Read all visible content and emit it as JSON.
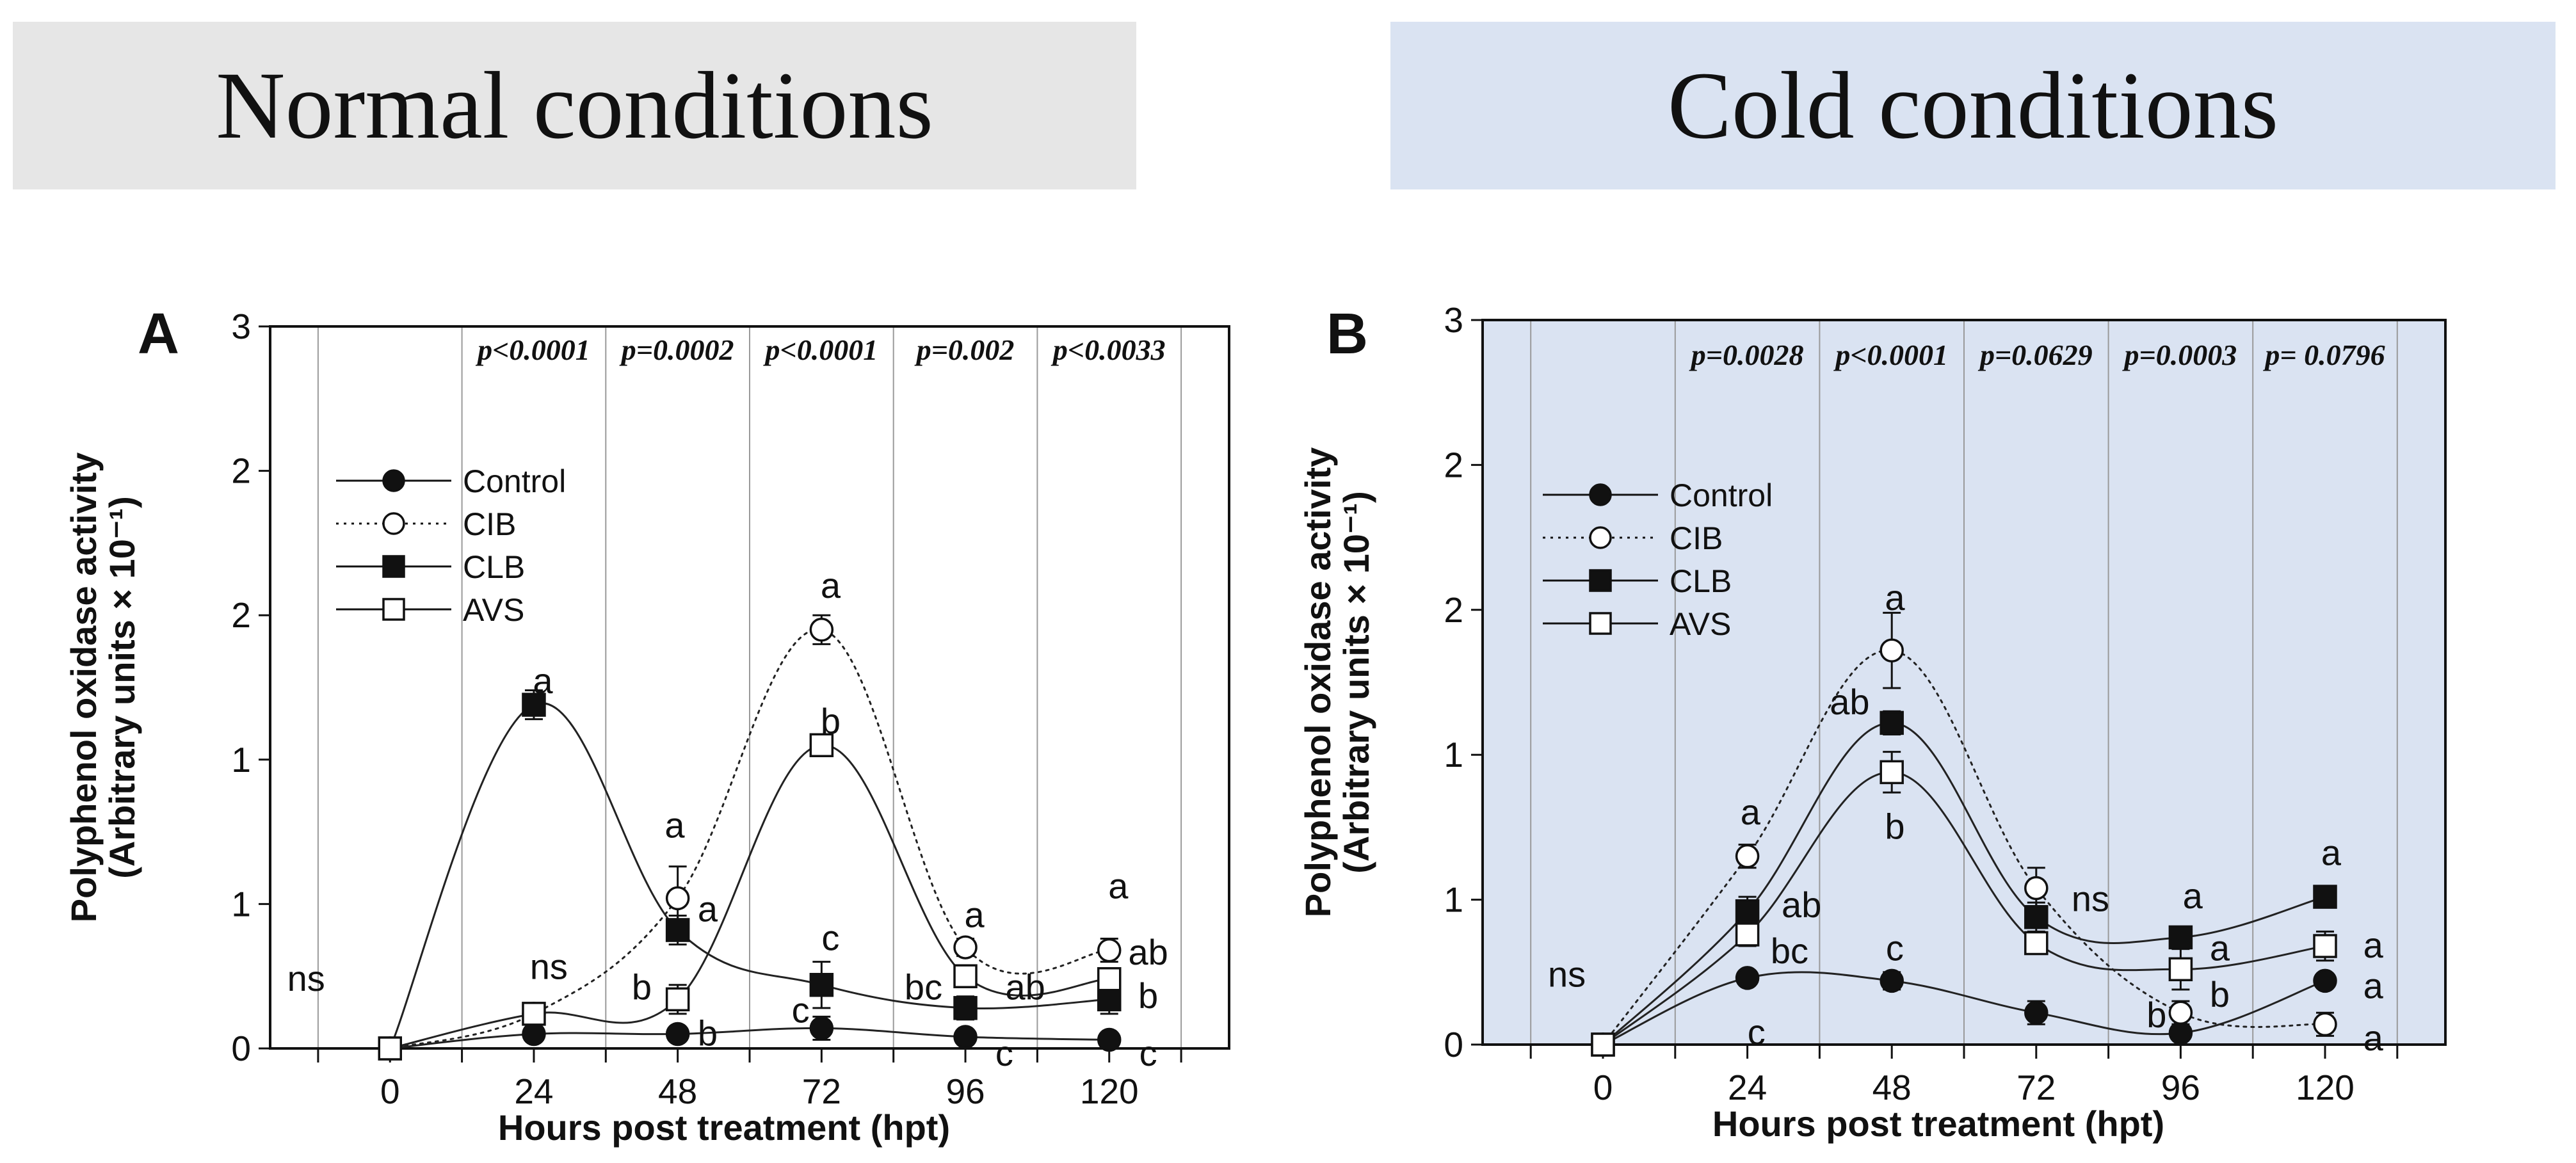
{
  "banners": {
    "normal": "Normal conditions",
    "cold": "Cold conditions"
  },
  "colors": {
    "plot_bg_normal": "#ffffff",
    "plot_bg_cold": "#dae3f2",
    "line": "#222222",
    "marker_fill": "#111111"
  },
  "chart_data": [
    {
      "panel_label": "A",
      "type": "line",
      "x": [
        0,
        24,
        48,
        72,
        96,
        120
      ],
      "xlabel": "Hours post treatment (hpt)",
      "ylabel_line1": "Polyphenol oxidase activity",
      "ylabel_line2": "(Arbitrary units × 10⁻¹)",
      "ylim": [
        0,
        2.5
      ],
      "xlim": [
        -20,
        140
      ],
      "ytick_values": [
        0,
        0.5,
        1,
        1.5,
        2,
        2.5
      ],
      "ytick_labels": [
        "0",
        "1",
        "1",
        "2",
        "2",
        "3"
      ],
      "xtick_labels": [
        "0",
        "24",
        "48",
        "72",
        "96",
        "120"
      ],
      "pvalues": [
        {
          "x": 24,
          "text": "p<0.0001"
        },
        {
          "x": 48,
          "text": "p=0.0002"
        },
        {
          "x": 72,
          "text": "p<0.0001"
        },
        {
          "x": 96,
          "text": "p=0.002"
        },
        {
          "x": 120,
          "text": "p<0.0033"
        }
      ],
      "legend": [
        "Control",
        "CIB",
        "CLB",
        "AVS"
      ],
      "series": [
        {
          "name": "Control",
          "marker": "filled-circle",
          "dash": "solid",
          "values": [
            0.0,
            0.05,
            0.05,
            0.07,
            0.04,
            0.03
          ],
          "err": [
            0,
            0.02,
            0.02,
            0.04,
            0.02,
            0.01
          ]
        },
        {
          "name": "CIB",
          "marker": "open-circle",
          "dash": "dotted",
          "values": [
            0.0,
            0.12,
            0.52,
            1.45,
            0.35,
            0.34
          ],
          "err": [
            0,
            0.02,
            0.11,
            0.05,
            0.03,
            0.04
          ]
        },
        {
          "name": "CLB",
          "marker": "filled-square",
          "dash": "solid",
          "values": [
            0.0,
            1.19,
            0.41,
            0.22,
            0.14,
            0.17
          ],
          "err": [
            0,
            0.05,
            0.05,
            0.08,
            0.04,
            0.05
          ]
        },
        {
          "name": "AVS",
          "marker": "open-square",
          "dash": "solid",
          "values": [
            0.0,
            0.12,
            0.17,
            1.05,
            0.25,
            0.24
          ],
          "err": [
            0,
            0.03,
            0.05,
            0.02,
            0.03,
            0.03
          ]
        }
      ],
      "annotations": [
        {
          "text": "ns",
          "x": -14,
          "y": 0.2
        },
        {
          "text": "ns",
          "x": 26.5,
          "y": 0.24
        },
        {
          "text": "a",
          "x": 25.5,
          "y": 1.23
        },
        {
          "text": "a",
          "x": 47.5,
          "y": 0.73
        },
        {
          "text": "a",
          "x": 53,
          "y": 0.44
        },
        {
          "text": "b",
          "x": 42,
          "y": 0.17
        },
        {
          "text": "b",
          "x": 53,
          "y": 0.01
        },
        {
          "text": "a",
          "x": 73.5,
          "y": 1.56
        },
        {
          "text": "b",
          "x": 73.5,
          "y": 1.09
        },
        {
          "text": "c",
          "x": 73.5,
          "y": 0.34
        },
        {
          "text": "c",
          "x": 68.5,
          "y": 0.09
        },
        {
          "text": "a",
          "x": 97.5,
          "y": 0.42
        },
        {
          "text": "bc",
          "x": 89,
          "y": 0.17
        },
        {
          "text": "ab",
          "x": 106,
          "y": 0.17
        },
        {
          "text": "c",
          "x": 102.5,
          "y": -0.06
        },
        {
          "text": "a",
          "x": 121.5,
          "y": 0.52
        },
        {
          "text": "ab",
          "x": 126.5,
          "y": 0.29
        },
        {
          "text": "b",
          "x": 126.5,
          "y": 0.14
        },
        {
          "text": "c",
          "x": 126.5,
          "y": -0.06
        }
      ]
    },
    {
      "panel_label": "B",
      "type": "line",
      "x": [
        0,
        24,
        48,
        72,
        96,
        120
      ],
      "xlabel": "Hours post treatment (hpt)",
      "ylabel_line1": "Polyphenol oxidase activity",
      "ylabel_line2": "(Arbitrary units × 10⁻¹)",
      "ylim": [
        0,
        2.5
      ],
      "xlim": [
        -20,
        140
      ],
      "ytick_values": [
        0,
        0.5,
        1,
        1.5,
        2,
        2.5
      ],
      "ytick_labels": [
        "0",
        "1",
        "1",
        "2",
        "2",
        "3"
      ],
      "xtick_labels": [
        "0",
        "24",
        "48",
        "72",
        "96",
        "120"
      ],
      "pvalues": [
        {
          "x": 24,
          "text": "p=0.0028"
        },
        {
          "x": 48,
          "text": "p<0.0001"
        },
        {
          "x": 72,
          "text": "p=0.0629"
        },
        {
          "x": 96,
          "text": "p=0.0003"
        },
        {
          "x": 120,
          "text": "p= 0.0796"
        }
      ],
      "legend": [
        "Control",
        "CIB",
        "CLB",
        "AVS"
      ],
      "series": [
        {
          "name": "Control",
          "marker": "filled-circle",
          "dash": "solid",
          "values": [
            0.0,
            0.23,
            0.22,
            0.11,
            0.04,
            0.22
          ],
          "err": [
            0,
            0.02,
            0.03,
            0.04,
            0.02,
            0.02
          ]
        },
        {
          "name": "CIB",
          "marker": "open-circle",
          "dash": "dotted",
          "values": [
            0.0,
            0.65,
            1.36,
            0.54,
            0.11,
            0.07
          ],
          "err": [
            0,
            0.04,
            0.13,
            0.07,
            0.04,
            0.04
          ]
        },
        {
          "name": "CLB",
          "marker": "filled-square",
          "dash": "solid",
          "values": [
            0.0,
            0.46,
            1.11,
            0.44,
            0.37,
            0.51
          ],
          "err": [
            0,
            0.05,
            0.04,
            0.05,
            0.03,
            0.03
          ]
        },
        {
          "name": "AVS",
          "marker": "open-square",
          "dash": "solid",
          "values": [
            0.0,
            0.38,
            0.94,
            0.35,
            0.26,
            0.34
          ],
          "err": [
            0,
            0.04,
            0.07,
            0.03,
            0.07,
            0.05
          ]
        }
      ],
      "annotations": [
        {
          "text": "ns",
          "x": -6,
          "y": 0.2
        },
        {
          "text": "a",
          "x": 24.5,
          "y": 0.76
        },
        {
          "text": "ab",
          "x": 33,
          "y": 0.44
        },
        {
          "text": "bc",
          "x": 31,
          "y": 0.28
        },
        {
          "text": "c",
          "x": 25.5,
          "y": 0.0
        },
        {
          "text": "a",
          "x": 48.5,
          "y": 1.5
        },
        {
          "text": "ab",
          "x": 41,
          "y": 1.14
        },
        {
          "text": "b",
          "x": 48.5,
          "y": 0.71
        },
        {
          "text": "c",
          "x": 48.5,
          "y": 0.29
        },
        {
          "text": "ns",
          "x": 81,
          "y": 0.46
        },
        {
          "text": "a",
          "x": 98,
          "y": 0.47
        },
        {
          "text": "a",
          "x": 102.5,
          "y": 0.29
        },
        {
          "text": "b",
          "x": 102.5,
          "y": 0.13
        },
        {
          "text": "b",
          "x": 92,
          "y": 0.06
        },
        {
          "text": "a",
          "x": 121,
          "y": 0.62
        },
        {
          "text": "a",
          "x": 128,
          "y": 0.3
        },
        {
          "text": "a",
          "x": 128,
          "y": 0.16
        },
        {
          "text": "a",
          "x": 128,
          "y": -0.02
        }
      ]
    }
  ]
}
